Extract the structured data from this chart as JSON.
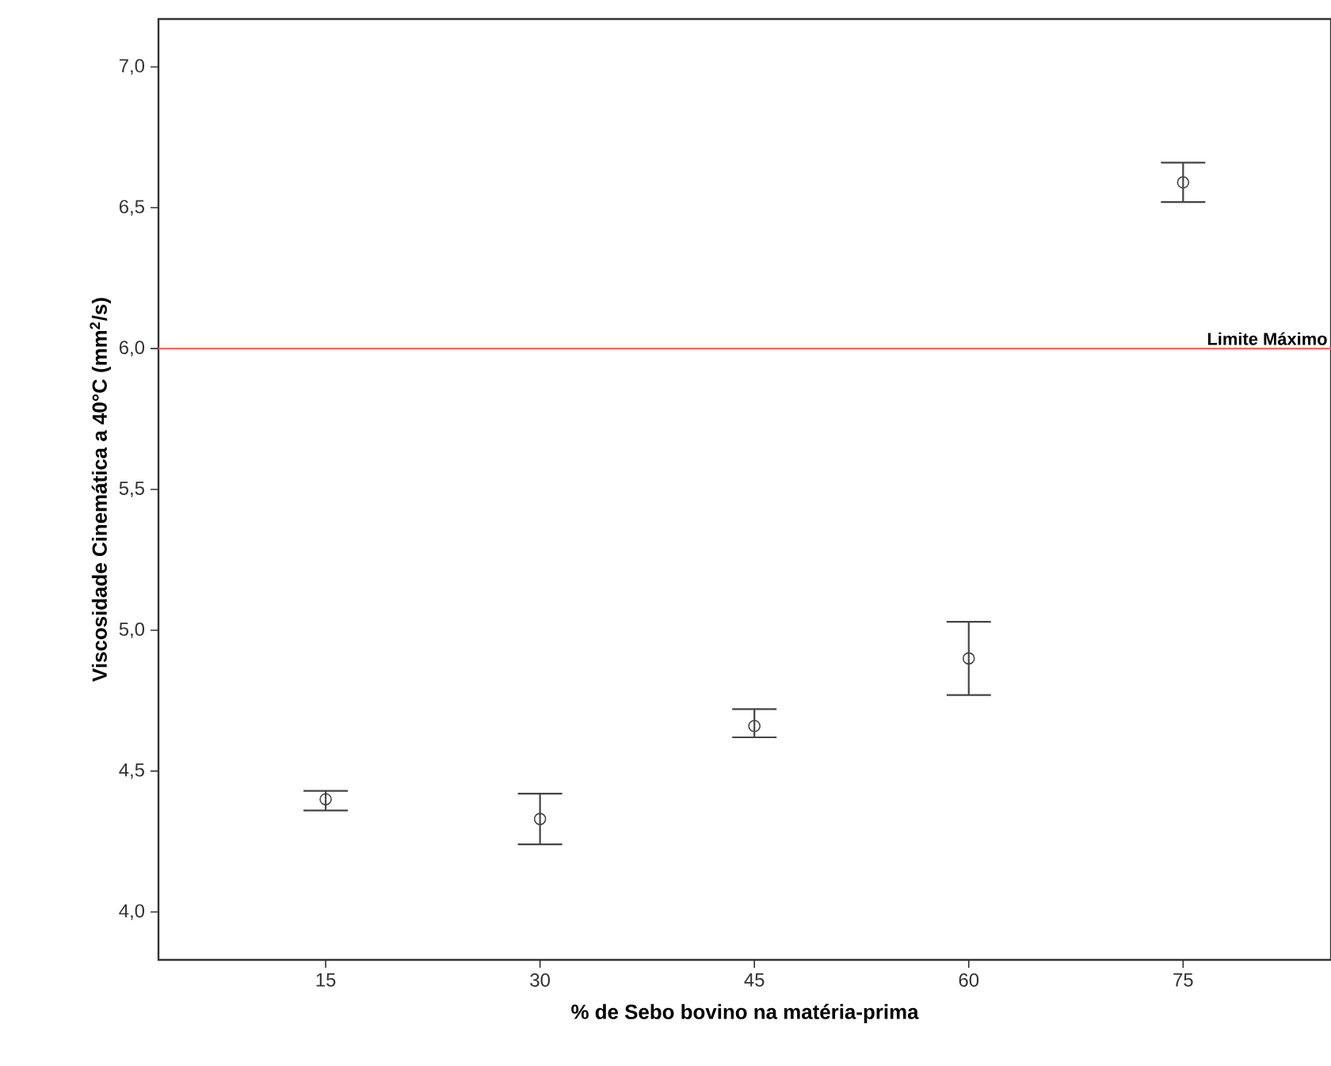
{
  "chart_data": {
    "type": "scatter",
    "xlabel": "% de Sebo bovino na matéria-prima",
    "ylabel": "Viscosidade Cinemática a 40°C (mm$^{2}$/s)",
    "categories": [
      "15",
      "30",
      "45",
      "60",
      "75"
    ],
    "values": [
      4.4,
      4.33,
      4.66,
      4.9,
      6.59
    ],
    "errors": [
      [
        4.36,
        4.43
      ],
      [
        4.24,
        4.42
      ],
      [
        4.62,
        4.72
      ],
      [
        4.77,
        5.03
      ],
      [
        6.52,
        6.66
      ]
    ],
    "color": "#444444",
    "marker": "circle",
    "ylim": [
      3.83,
      7.17
    ],
    "yticks": [
      {
        "value": 4,
        "label": "4,0"
      },
      {
        "value": 4.5,
        "label": "4,5"
      },
      {
        "value": 5,
        "label": "5,0"
      },
      {
        "value": 5.5,
        "label": "5,5"
      },
      {
        "value": 6,
        "label": "6,0"
      },
      {
        "value": 6.5,
        "label": "6,5"
      },
      {
        "value": 7,
        "label": "7,0"
      }
    ],
    "ref_lines": [
      {
        "axis": "y",
        "value": 6,
        "label": "Limite Máximo",
        "color": "#ff6666"
      }
    ]
  }
}
